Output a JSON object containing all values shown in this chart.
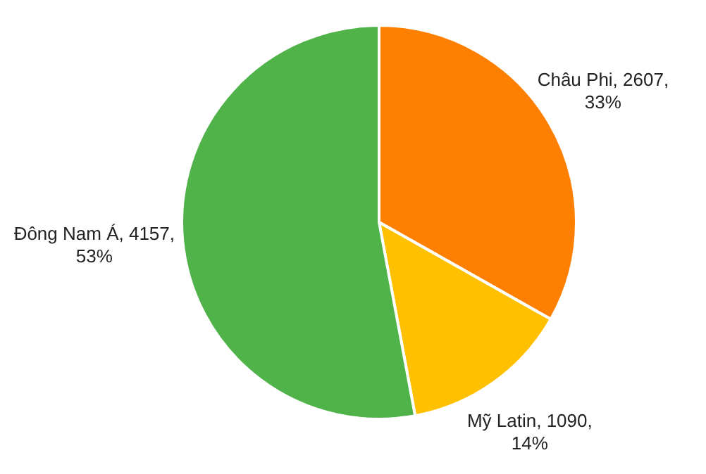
{
  "chart_data": {
    "type": "pie",
    "categories": [
      "Châu Phi",
      "Mỹ Latin",
      "Đông Nam Á"
    ],
    "values": [
      2607,
      1090,
      4157
    ],
    "colors": [
      "#ff7f00",
      "#ffc000",
      "#4fb34a"
    ],
    "value_labels": [
      "2607, 33%",
      "1090, 14%",
      "4157, 53%"
    ],
    "legend": false
  }
}
